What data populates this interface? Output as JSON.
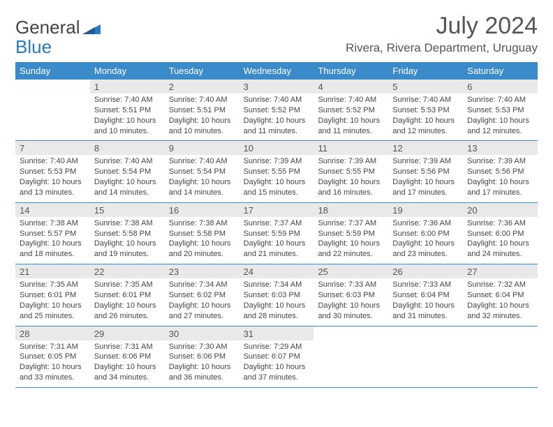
{
  "brand": {
    "part1": "General",
    "part2": "Blue"
  },
  "colors": {
    "header_bg": "#3b8aca",
    "header_text": "#ffffff",
    "daynum_bg": "#e9e9e9",
    "rule": "#3b8aca",
    "text": "#444444",
    "title": "#555555"
  },
  "title": "July 2024",
  "location": "Rivera, Rivera Department, Uruguay",
  "weekdays": [
    "Sunday",
    "Monday",
    "Tuesday",
    "Wednesday",
    "Thursday",
    "Friday",
    "Saturday"
  ],
  "weeks": [
    [
      null,
      {
        "n": "1",
        "sr": "7:40 AM",
        "ss": "5:51 PM",
        "dl": "10 hours and 10 minutes."
      },
      {
        "n": "2",
        "sr": "7:40 AM",
        "ss": "5:51 PM",
        "dl": "10 hours and 10 minutes."
      },
      {
        "n": "3",
        "sr": "7:40 AM",
        "ss": "5:52 PM",
        "dl": "10 hours and 11 minutes."
      },
      {
        "n": "4",
        "sr": "7:40 AM",
        "ss": "5:52 PM",
        "dl": "10 hours and 11 minutes."
      },
      {
        "n": "5",
        "sr": "7:40 AM",
        "ss": "5:53 PM",
        "dl": "10 hours and 12 minutes."
      },
      {
        "n": "6",
        "sr": "7:40 AM",
        "ss": "5:53 PM",
        "dl": "10 hours and 12 minutes."
      }
    ],
    [
      {
        "n": "7",
        "sr": "7:40 AM",
        "ss": "5:53 PM",
        "dl": "10 hours and 13 minutes."
      },
      {
        "n": "8",
        "sr": "7:40 AM",
        "ss": "5:54 PM",
        "dl": "10 hours and 14 minutes."
      },
      {
        "n": "9",
        "sr": "7:40 AM",
        "ss": "5:54 PM",
        "dl": "10 hours and 14 minutes."
      },
      {
        "n": "10",
        "sr": "7:39 AM",
        "ss": "5:55 PM",
        "dl": "10 hours and 15 minutes."
      },
      {
        "n": "11",
        "sr": "7:39 AM",
        "ss": "5:55 PM",
        "dl": "10 hours and 16 minutes."
      },
      {
        "n": "12",
        "sr": "7:39 AM",
        "ss": "5:56 PM",
        "dl": "10 hours and 17 minutes."
      },
      {
        "n": "13",
        "sr": "7:39 AM",
        "ss": "5:56 PM",
        "dl": "10 hours and 17 minutes."
      }
    ],
    [
      {
        "n": "14",
        "sr": "7:38 AM",
        "ss": "5:57 PM",
        "dl": "10 hours and 18 minutes."
      },
      {
        "n": "15",
        "sr": "7:38 AM",
        "ss": "5:58 PM",
        "dl": "10 hours and 19 minutes."
      },
      {
        "n": "16",
        "sr": "7:38 AM",
        "ss": "5:58 PM",
        "dl": "10 hours and 20 minutes."
      },
      {
        "n": "17",
        "sr": "7:37 AM",
        "ss": "5:59 PM",
        "dl": "10 hours and 21 minutes."
      },
      {
        "n": "18",
        "sr": "7:37 AM",
        "ss": "5:59 PM",
        "dl": "10 hours and 22 minutes."
      },
      {
        "n": "19",
        "sr": "7:36 AM",
        "ss": "6:00 PM",
        "dl": "10 hours and 23 minutes."
      },
      {
        "n": "20",
        "sr": "7:36 AM",
        "ss": "6:00 PM",
        "dl": "10 hours and 24 minutes."
      }
    ],
    [
      {
        "n": "21",
        "sr": "7:35 AM",
        "ss": "6:01 PM",
        "dl": "10 hours and 25 minutes."
      },
      {
        "n": "22",
        "sr": "7:35 AM",
        "ss": "6:01 PM",
        "dl": "10 hours and 26 minutes."
      },
      {
        "n": "23",
        "sr": "7:34 AM",
        "ss": "6:02 PM",
        "dl": "10 hours and 27 minutes."
      },
      {
        "n": "24",
        "sr": "7:34 AM",
        "ss": "6:03 PM",
        "dl": "10 hours and 28 minutes."
      },
      {
        "n": "25",
        "sr": "7:33 AM",
        "ss": "6:03 PM",
        "dl": "10 hours and 30 minutes."
      },
      {
        "n": "26",
        "sr": "7:33 AM",
        "ss": "6:04 PM",
        "dl": "10 hours and 31 minutes."
      },
      {
        "n": "27",
        "sr": "7:32 AM",
        "ss": "6:04 PM",
        "dl": "10 hours and 32 minutes."
      }
    ],
    [
      {
        "n": "28",
        "sr": "7:31 AM",
        "ss": "6:05 PM",
        "dl": "10 hours and 33 minutes."
      },
      {
        "n": "29",
        "sr": "7:31 AM",
        "ss": "6:06 PM",
        "dl": "10 hours and 34 minutes."
      },
      {
        "n": "30",
        "sr": "7:30 AM",
        "ss": "6:06 PM",
        "dl": "10 hours and 36 minutes."
      },
      {
        "n": "31",
        "sr": "7:29 AM",
        "ss": "6:07 PM",
        "dl": "10 hours and 37 minutes."
      },
      null,
      null,
      null
    ]
  ],
  "labels": {
    "sunrise": "Sunrise:",
    "sunset": "Sunset:",
    "daylight": "Daylight:"
  }
}
